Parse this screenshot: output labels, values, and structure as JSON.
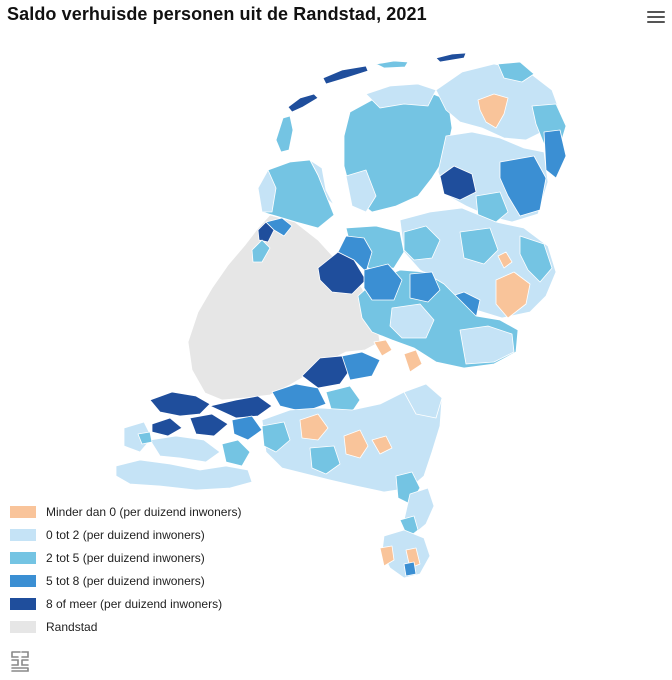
{
  "title": "Saldo verhuisde personen uit de Randstad, 2021",
  "menu_icon": "hamburger-menu-icon",
  "logo_icon": "cbs-logo-icon",
  "colors": {
    "neg": "#f9c49a",
    "c0_2": "#c5e3f6",
    "c2_5": "#74c4e3",
    "c5_8": "#3b8fd3",
    "c8": "#1f4e9c",
    "randstad": "#e6e6e6",
    "border": "#ffffff"
  },
  "legend": [
    {
      "key": "neg",
      "label": "Minder dan 0 (per duizend inwoners)"
    },
    {
      "key": "c0_2",
      "label": "0 tot 2 (per duizend inwoners)"
    },
    {
      "key": "c2_5",
      "label": "2 tot 5 (per duizend inwoners)"
    },
    {
      "key": "c5_8",
      "label": "5 tot 8 (per duizend inwoners)"
    },
    {
      "key": "c8",
      "label": "8 of meer (per duizend inwoners)"
    },
    {
      "key": "randstad",
      "label": "Randstad"
    }
  ]
}
